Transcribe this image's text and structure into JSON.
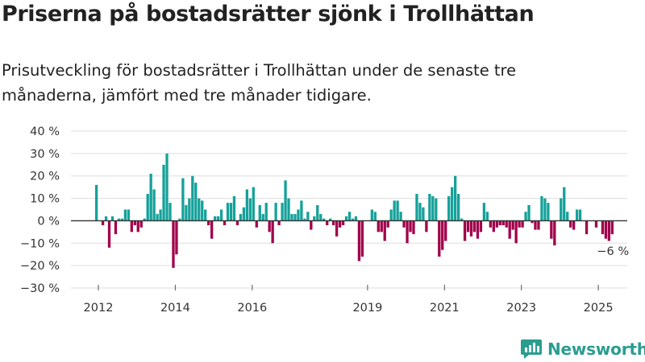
{
  "title": "Priserna på bostadsrätter sjönk i Trollhättan",
  "subtitle": "Prisutveckling för bostadsrätter i Trollhättan under de senaste tre månaderna, jämfört med tre månader tidigare.",
  "brand": "Newsworthy",
  "colors": {
    "positive": "#15a19a",
    "negative": "#a0004a",
    "grid": "#dddddd",
    "baseline": "#333333",
    "brand": "#2a9d8f"
  },
  "chart_data": {
    "type": "bar",
    "ylim": [
      -30,
      40
    ],
    "yticks": [
      40,
      30,
      20,
      10,
      0,
      -10,
      -20,
      -30
    ],
    "ytick_labels": [
      "40 %",
      "30 %",
      "20 %",
      "10 %",
      "0 %",
      "−10 %",
      "−20 %",
      "−30 %"
    ],
    "xticks": [
      "2012",
      "2014",
      "2016",
      "2019",
      "2021",
      "2023",
      "2025"
    ],
    "xtick_positions": [
      2012,
      2014,
      2016,
      2019,
      2021,
      2023,
      2025
    ],
    "x_start": 2011.95,
    "x_step": 0.0833,
    "values": [
      16,
      0,
      -2,
      2,
      -12,
      2,
      -6,
      1,
      1,
      5,
      5,
      -5,
      -2,
      -5,
      -3,
      1,
      12,
      21,
      14,
      3,
      5,
      25,
      30,
      8,
      -21,
      -15,
      1,
      19,
      7,
      10,
      20,
      17,
      10,
      9,
      5,
      -2,
      -8,
      2,
      2,
      5,
      -2,
      8,
      8,
      11,
      -2,
      3,
      6,
      14,
      10,
      15,
      -3,
      7,
      3,
      8,
      -5,
      -10,
      8,
      -2,
      8,
      18,
      10,
      3,
      3,
      5,
      9,
      1,
      4,
      -4,
      2,
      7,
      3,
      1,
      -2,
      1,
      -2,
      -7,
      -3,
      -2,
      2,
      4,
      1,
      2,
      -18,
      -16,
      0,
      0,
      5,
      4,
      -5,
      -5,
      -9,
      -3,
      5,
      9,
      9,
      4,
      -3,
      -10,
      -5,
      -6,
      12,
      8,
      6,
      -5,
      12,
      11,
      10,
      -16,
      -13,
      -9,
      11,
      15,
      20,
      12,
      1,
      -9,
      -5,
      -7,
      -5,
      -8,
      -5,
      8,
      4,
      -3,
      -5,
      -3,
      -2,
      -2,
      -3,
      -8,
      -4,
      -10,
      -3,
      -3,
      4,
      7,
      -1,
      -4,
      -4,
      11,
      10,
      8,
      -8,
      -11,
      0,
      10,
      15,
      4,
      -3,
      -4,
      5,
      5,
      0,
      -6,
      0,
      0,
      -3,
      0,
      -6,
      -8,
      -9,
      -6
    ],
    "last_label": "−6 %"
  }
}
